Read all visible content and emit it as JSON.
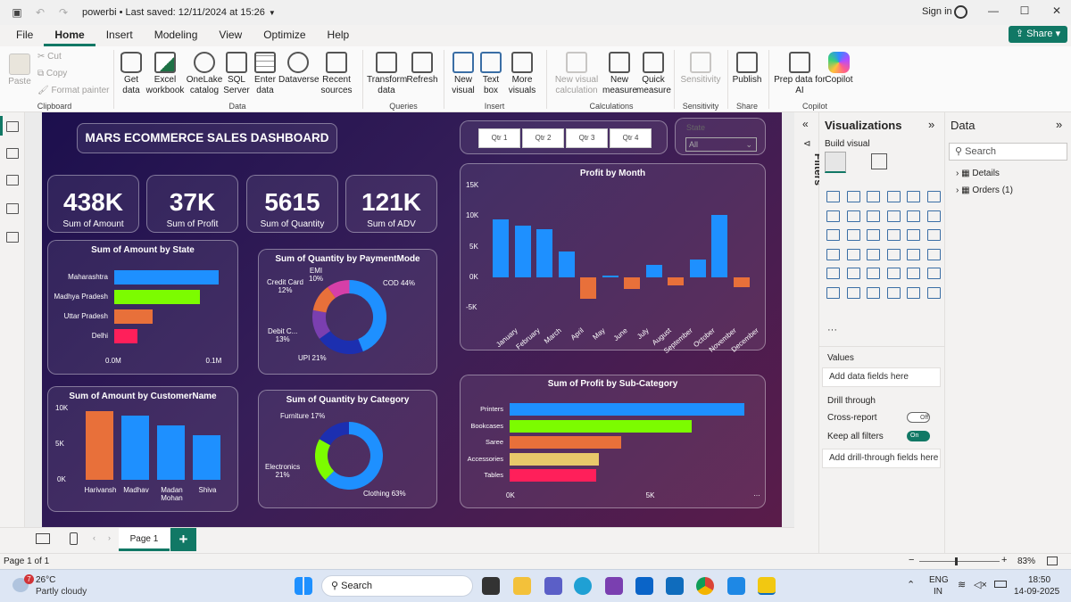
{
  "titlebar": {
    "title": "powerbi • Last saved: 12/11/2024 at 15:26",
    "signin": "Sign in"
  },
  "menu": {
    "items": [
      "File",
      "Home",
      "Insert",
      "Modeling",
      "View",
      "Optimize",
      "Help"
    ],
    "share": "Share"
  },
  "ribbon": {
    "clipboard": {
      "paste": "Paste",
      "cut": "Cut",
      "copy": "Copy",
      "format_painter": "Format painter",
      "label": "Clipboard"
    },
    "data": {
      "get_data": "Get data",
      "excel": "Excel workbook",
      "onelake": "OneLake catalog",
      "sql": "SQL Server",
      "enter": "Enter data",
      "dataverse": "Dataverse",
      "recent": "Recent sources",
      "label": "Data"
    },
    "queries": {
      "transform": "Transform data",
      "refresh": "Refresh",
      "label": "Queries"
    },
    "insert": {
      "new_visual": "New visual",
      "text_box": "Text box",
      "more_visuals": "More visuals",
      "label": "Insert"
    },
    "calculations": {
      "new_visual_calc": "New visual calculation",
      "new_measure": "New measure",
      "quick_measure": "Quick measure",
      "label": "Calculations"
    },
    "sensitivity": {
      "sensitivity": "Sensitivity",
      "label": "Sensitivity"
    },
    "share": {
      "publish": "Publish",
      "label": "Share"
    },
    "copilot": {
      "prep": "Prep data for AI",
      "copilot": "Copilot",
      "label": "Copilot"
    }
  },
  "dashboard": {
    "title": "MARS ECOMMERCE SALES DASHBOARD",
    "quarters": [
      "Qtr 1",
      "Qtr 2",
      "Qtr 3",
      "Qtr 4"
    ],
    "dropdown": {
      "header": "State",
      "value": "All"
    },
    "kpis": [
      {
        "value": "438K",
        "label": "Sum of Amount"
      },
      {
        "value": "37K",
        "label": "Sum of Profit"
      },
      {
        "value": "5615",
        "label": "Sum of Quantity"
      },
      {
        "value": "121K",
        "label": "Sum of ADV"
      }
    ],
    "colors": {
      "blue": "#1e90ff",
      "green": "#7cfc00",
      "orange": "#e8703a",
      "pink": "#ff1f5a",
      "yellow": "#e8c86a",
      "navy": "#1c2fb0",
      "purple": "#7a3fb0",
      "magenta": "#d63fa8"
    }
  },
  "chart_data": [
    {
      "type": "bar",
      "title": "Sum of Amount by State",
      "orientation": "horizontal",
      "categories": [
        "Maharashtra",
        "Madhya Pradesh",
        "Uttar Pradesh",
        "Delhi"
      ],
      "values": [
        0.104,
        0.085,
        0.038,
        0.023
      ],
      "x_ticks": [
        "0.0M",
        "0.1M"
      ],
      "xlim": [
        0,
        0.12
      ]
    },
    {
      "type": "pie",
      "title": "Sum of Quantity by PaymentMode",
      "labels": [
        "COD",
        "UPI",
        "Debit C...",
        "Credit Card",
        "EMI"
      ],
      "values": [
        44,
        21,
        13,
        12,
        10
      ],
      "label_text": [
        "COD 44%",
        "UPI 21%",
        "Debit C... 13%",
        "Credit Card 12%",
        "EMI 10%"
      ]
    },
    {
      "type": "bar",
      "title": "Profit by Month",
      "categories": [
        "January",
        "February",
        "March",
        "April",
        "May",
        "June",
        "July",
        "August",
        "September",
        "October",
        "November",
        "December"
      ],
      "values": [
        9500,
        8400,
        7900,
        4200,
        -3600,
        300,
        -2000,
        2000,
        -1400,
        2900,
        10200,
        -1600
      ],
      "y_ticks": [
        "15K",
        "10K",
        "5K",
        "0K",
        "-5K"
      ],
      "ylim": [
        -5000,
        15000
      ]
    },
    {
      "type": "bar",
      "title": "Sum of Amount by CustomerName",
      "categories": [
        "Harivansh",
        "Madhav",
        "Madan Mohan",
        "Shiva"
      ],
      "values": [
        9600,
        9000,
        7600,
        6200
      ],
      "y_ticks": [
        "10K",
        "5K",
        "0K"
      ],
      "ylim": [
        0,
        10000
      ]
    },
    {
      "type": "pie",
      "title": "Sum of Quantity by Category",
      "labels": [
        "Clothing",
        "Electronics",
        "Furniture"
      ],
      "values": [
        63,
        21,
        17
      ],
      "label_text": [
        "Clothing 63%",
        "Electronics 21%",
        "Furniture 17%"
      ]
    },
    {
      "type": "bar",
      "title": "Sum of Profit by Sub-Category",
      "orientation": "horizontal",
      "categories": [
        "Printers",
        "Bookcases",
        "Saree",
        "Accessories",
        "Tables"
      ],
      "values": [
        8400,
        6500,
        4000,
        3200,
        3100
      ],
      "x_ticks": [
        "0K",
        "5K"
      ],
      "xlim": [
        0,
        9000
      ]
    }
  ],
  "panes": {
    "filters": "Filters",
    "visualizations": "Visualizations",
    "build_visual": "Build visual",
    "values": "Values",
    "add_data_fields": "Add data fields here",
    "drill_through": "Drill through",
    "cross_report": "Cross-report",
    "cross_report_state": "Off",
    "keep_all_filters": "Keep all filters",
    "keep_all_filters_state": "On",
    "add_drill_through": "Add drill-through fields here",
    "data": "Data",
    "search_placeholder": "Search",
    "tables": [
      "Details",
      "Orders (1)"
    ]
  },
  "pages": {
    "tab": "Page 1",
    "status": "Page 1 of 1",
    "zoom": "83%"
  },
  "taskbar": {
    "weather_temp": "26°C",
    "weather_desc": "Partly cloudy",
    "badge": "7",
    "search": "Search",
    "lang1": "ENG",
    "lang2": "IN",
    "time": "18:50",
    "date": "14-09-2025"
  }
}
